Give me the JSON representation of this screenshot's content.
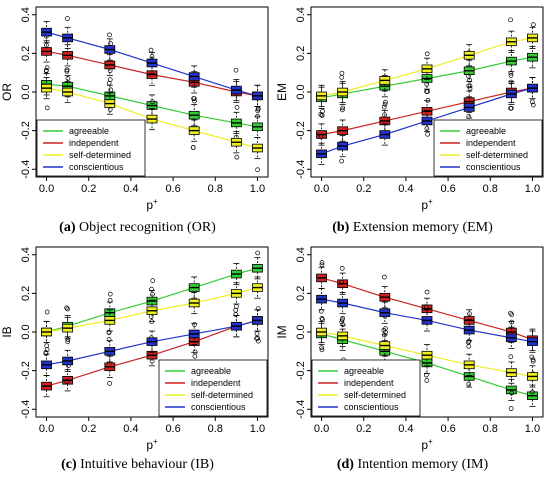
{
  "chart_data": [
    {
      "type": "box",
      "caption_letter": "(a)",
      "caption_text": " Object recognition (OR)",
      "xlabel": "p",
      "xlabel_sup": "+",
      "ylabel": "OR",
      "xlim": [
        0,
        1
      ],
      "ylim": [
        -0.4,
        0.4
      ],
      "xticks": [
        "0.0",
        "0.2",
        "0.4",
        "0.6",
        "0.8",
        "1.0"
      ],
      "yticks": [
        "-0.4",
        "-0.2",
        "0.0",
        "0.2",
        "0.4"
      ],
      "legend_position": "bottom-left",
      "x": [
        0.0,
        0.1,
        0.3,
        0.5,
        0.7,
        0.9,
        1.0
      ],
      "series": [
        {
          "name": "agreeable",
          "color": "#33cc33",
          "values": [
            0.04,
            0.03,
            -0.02,
            -0.07,
            -0.12,
            -0.16,
            -0.18
          ]
        },
        {
          "name": "independent",
          "color": "#cc2222",
          "values": [
            0.21,
            0.19,
            0.14,
            0.09,
            0.05,
            0.0,
            -0.02
          ]
        },
        {
          "name": "self-determined",
          "color": "#eeee22",
          "values": [
            0.02,
            0.0,
            -0.06,
            -0.14,
            -0.2,
            -0.26,
            -0.29
          ]
        },
        {
          "name": "conscientious",
          "color": "#2233cc",
          "values": [
            0.31,
            0.28,
            0.22,
            0.15,
            0.08,
            0.01,
            -0.02
          ]
        }
      ]
    },
    {
      "type": "box",
      "caption_letter": "(b)",
      "caption_text": " Extension memory (EM)",
      "xlabel": "p",
      "xlabel_sup": "+",
      "ylabel": "EM",
      "xlim": [
        0,
        1
      ],
      "ylim": [
        -0.4,
        0.4
      ],
      "xticks": [
        "0.0",
        "0.2",
        "0.4",
        "0.6",
        "0.8",
        "1.0"
      ],
      "yticks": [
        "-0.4",
        "-0.2",
        "0.0",
        "0.2",
        "0.4"
      ],
      "legend_position": "bottom-right",
      "x": [
        0.0,
        0.1,
        0.3,
        0.5,
        0.7,
        0.9,
        1.0
      ],
      "series": [
        {
          "name": "agreeable",
          "color": "#33cc33",
          "values": [
            -0.03,
            -0.01,
            0.03,
            0.07,
            0.11,
            0.16,
            0.18
          ]
        },
        {
          "name": "independent",
          "color": "#cc2222",
          "values": [
            -0.22,
            -0.2,
            -0.15,
            -0.1,
            -0.05,
            0.0,
            0.02
          ]
        },
        {
          "name": "self-determined",
          "color": "#eeee22",
          "values": [
            -0.02,
            0.0,
            0.06,
            0.12,
            0.19,
            0.26,
            0.28
          ]
        },
        {
          "name": "conscientious",
          "color": "#2233cc",
          "values": [
            -0.32,
            -0.28,
            -0.22,
            -0.15,
            -0.08,
            -0.01,
            0.02
          ]
        }
      ]
    },
    {
      "type": "box",
      "caption_letter": "(c)",
      "caption_text": " Intuitive behaviour (IB)",
      "xlabel": "p",
      "xlabel_sup": "+",
      "ylabel": "IB",
      "xlim": [
        0,
        1
      ],
      "ylim": [
        -0.4,
        0.4
      ],
      "xticks": [
        "0.0",
        "0.2",
        "0.4",
        "0.6",
        "0.8",
        "1.0"
      ],
      "yticks": [
        "-0.4",
        "-0.2",
        "0.0",
        "0.2",
        "0.4"
      ],
      "legend_position": "bottom-right",
      "x": [
        0.0,
        0.1,
        0.3,
        0.5,
        0.7,
        0.9,
        1.0
      ],
      "series": [
        {
          "name": "agreeable",
          "color": "#33cc33",
          "values": [
            0.0,
            0.03,
            0.1,
            0.16,
            0.23,
            0.3,
            0.33
          ]
        },
        {
          "name": "independent",
          "color": "#cc2222",
          "values": [
            -0.28,
            -0.25,
            -0.18,
            -0.12,
            -0.05,
            0.03,
            0.06
          ]
        },
        {
          "name": "self-determined",
          "color": "#eeee22",
          "values": [
            0.0,
            0.02,
            0.06,
            0.11,
            0.15,
            0.2,
            0.23
          ]
        },
        {
          "name": "conscientious",
          "color": "#2233cc",
          "values": [
            -0.17,
            -0.15,
            -0.1,
            -0.05,
            -0.01,
            0.03,
            0.06
          ]
        }
      ]
    },
    {
      "type": "box",
      "caption_letter": "(d)",
      "caption_text": " Intention memory (IM)",
      "xlabel": "p",
      "xlabel_sup": "+",
      "ylabel": "IM",
      "xlim": [
        0,
        1
      ],
      "ylim": [
        -0.4,
        0.4
      ],
      "xticks": [
        "0.0",
        "0.2",
        "0.4",
        "0.6",
        "0.8",
        "1.0"
      ],
      "yticks": [
        "-0.4",
        "-0.2",
        "0.0",
        "0.2",
        "0.4"
      ],
      "legend_position": "bottom-left",
      "x": [
        0.0,
        0.1,
        0.3,
        0.5,
        0.7,
        0.9,
        1.0
      ],
      "series": [
        {
          "name": "agreeable",
          "color": "#33cc33",
          "values": [
            -0.01,
            -0.04,
            -0.1,
            -0.16,
            -0.23,
            -0.3,
            -0.33
          ]
        },
        {
          "name": "independent",
          "color": "#cc2222",
          "values": [
            0.28,
            0.25,
            0.18,
            0.12,
            0.06,
            0.0,
            -0.04
          ]
        },
        {
          "name": "self-determined",
          "color": "#eeee22",
          "values": [
            0.0,
            -0.02,
            -0.07,
            -0.12,
            -0.17,
            -0.21,
            -0.23
          ]
        },
        {
          "name": "conscientious",
          "color": "#2233cc",
          "values": [
            0.17,
            0.15,
            0.1,
            0.06,
            0.01,
            -0.03,
            -0.05
          ]
        }
      ]
    }
  ]
}
